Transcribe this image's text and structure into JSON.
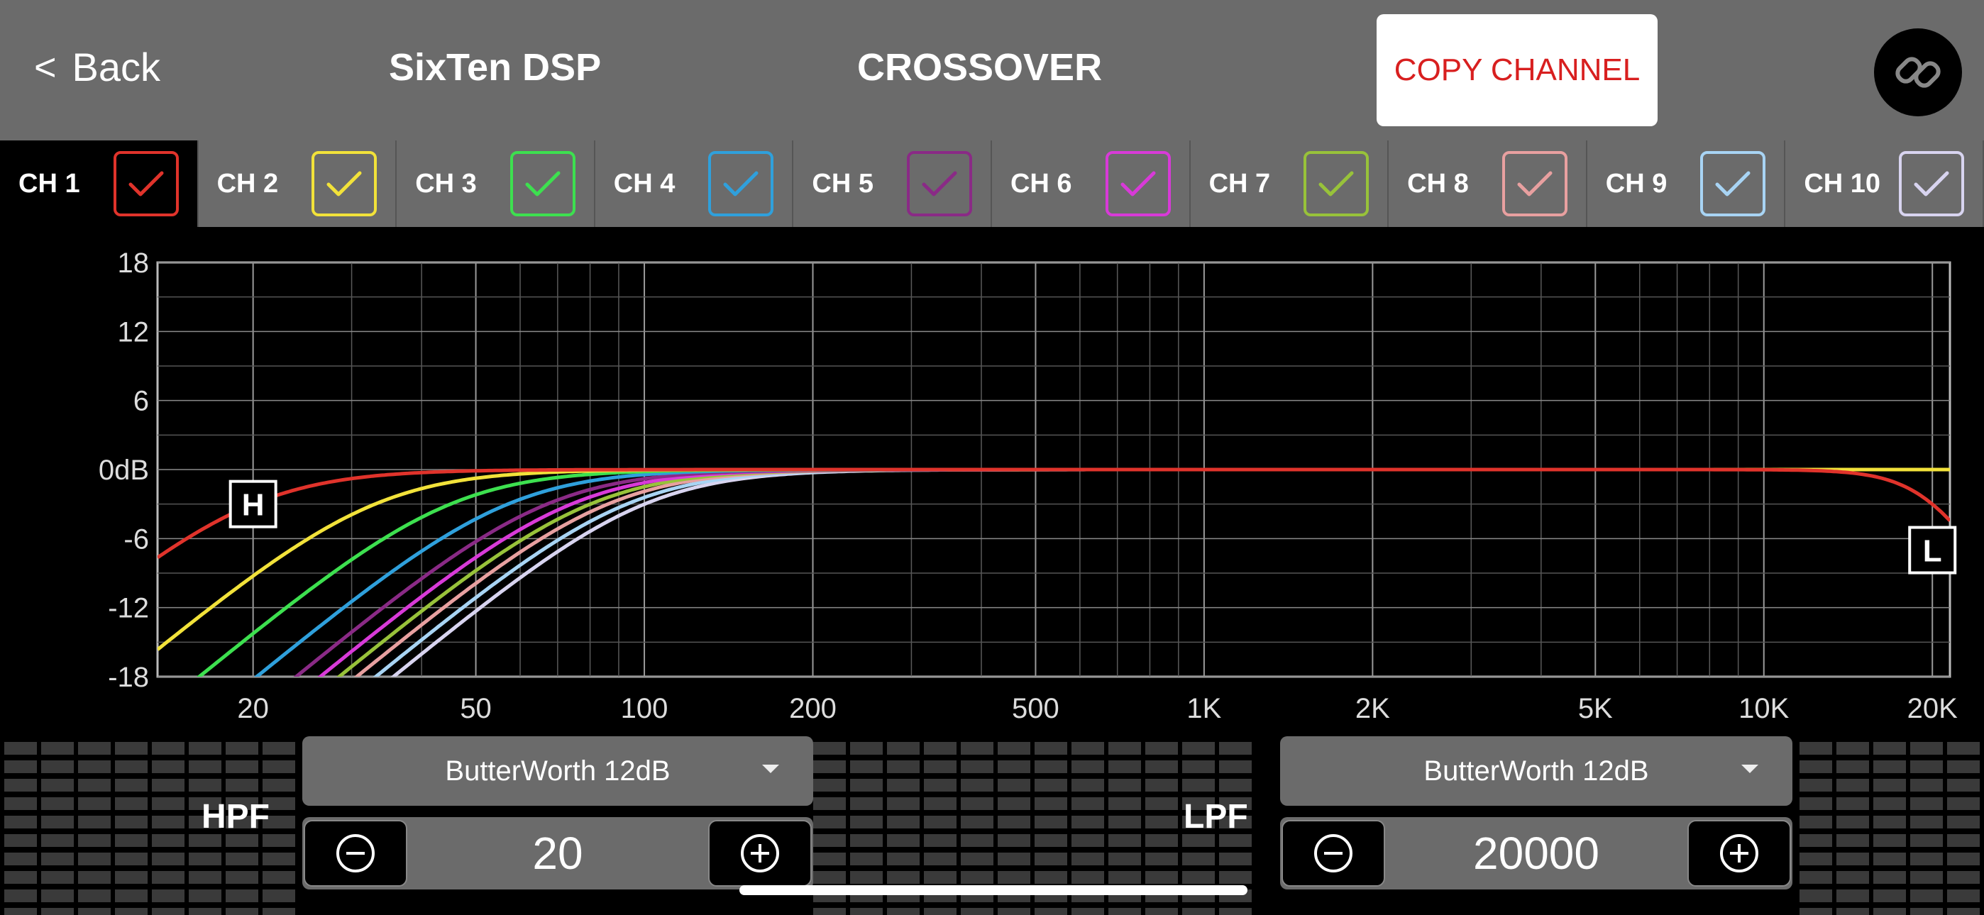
{
  "header": {
    "back_label": "Back",
    "app_title": "SixTen DSP",
    "page_title": "CROSSOVER",
    "copy_label": "COPY CHANNEL",
    "link_icon": "link-icon"
  },
  "channels": [
    {
      "label": "CH 1",
      "color": "#e0332b",
      "active": true
    },
    {
      "label": "CH 2",
      "color": "#f2e23a"
    },
    {
      "label": "CH 3",
      "color": "#3de04f"
    },
    {
      "label": "CH 4",
      "color": "#2fa0dc"
    },
    {
      "label": "CH 5",
      "color": "#8a2a86"
    },
    {
      "label": "CH 6",
      "color": "#d83ad8"
    },
    {
      "label": "CH 7",
      "color": "#98c23a"
    },
    {
      "label": "CH 8",
      "color": "#e8a0a0"
    },
    {
      "label": "CH 9",
      "color": "#a8d4f4"
    },
    {
      "label": "CH 10",
      "color": "#d8d4f0"
    }
  ],
  "chart_data": {
    "type": "line",
    "x_scale": "log",
    "xlim": [
      13.5,
      21500
    ],
    "ylim": [
      -18,
      18
    ],
    "grid": true,
    "y_ticks": [
      "18",
      "12",
      "6",
      "0dB",
      "-6",
      "-12",
      "-18"
    ],
    "y_tick_values": [
      18,
      12,
      6,
      0,
      -6,
      -12,
      -18
    ],
    "x_ticks": [
      "20",
      "50",
      "100",
      "200",
      "500",
      "1K",
      "2K",
      "5K",
      "10K",
      "20K"
    ],
    "x_tick_values": [
      20,
      50,
      100,
      200,
      500,
      1000,
      2000,
      5000,
      10000,
      20000
    ],
    "series": [
      {
        "channel": "CH 1",
        "hpf_hz": 20,
        "lpf_hz": 20000,
        "order": 2
      },
      {
        "channel": "CH 2",
        "hpf_hz": 33,
        "order": 2
      },
      {
        "channel": "CH 3",
        "hpf_hz": 45,
        "order": 2
      },
      {
        "channel": "CH 4",
        "hpf_hz": 57,
        "order": 2
      },
      {
        "channel": "CH 5",
        "hpf_hz": 67,
        "order": 2
      },
      {
        "channel": "CH 6",
        "hpf_hz": 74,
        "order": 2
      },
      {
        "channel": "CH 7",
        "hpf_hz": 80,
        "order": 2
      },
      {
        "channel": "CH 8",
        "hpf_hz": 86,
        "order": 2
      },
      {
        "channel": "CH 9",
        "hpf_hz": 93,
        "order": 2
      },
      {
        "channel": "CH 10",
        "hpf_hz": 100,
        "order": 2
      }
    ],
    "markers": [
      {
        "label": "H",
        "freq": 20,
        "db": -3
      },
      {
        "label": "L",
        "freq": 20000,
        "db": -7
      }
    ]
  },
  "hpf": {
    "label": "HPF",
    "filter_type": "ButterWorth 12dB",
    "value": "20"
  },
  "lpf": {
    "label": "LPF",
    "filter_type": "ButterWorth 12dB",
    "value": "20000"
  }
}
